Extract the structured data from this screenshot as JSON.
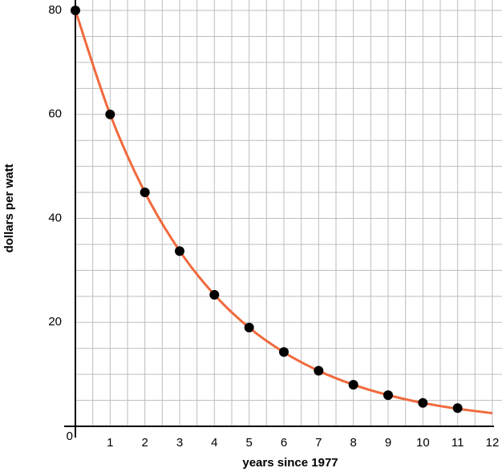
{
  "chart_data": {
    "type": "scatter",
    "x_label": "years since 1977",
    "y_label": "dollars per watt",
    "xlim": [
      0,
      12
    ],
    "ylim": [
      0,
      80
    ],
    "xticks": [
      1,
      2,
      3,
      4,
      5,
      6,
      7,
      8,
      9,
      10,
      11,
      12
    ],
    "yticks": [
      0,
      20,
      40,
      60,
      80
    ],
    "minor_xticks": [
      0.5,
      1,
      1.5,
      2,
      2.5,
      3,
      3.5,
      4,
      4.5,
      5,
      5.5,
      6,
      6.5,
      7,
      7.5,
      8,
      8.5,
      9,
      9.5,
      10,
      10.5,
      11,
      11.5,
      12
    ],
    "minor_yticks": [
      5,
      10,
      15,
      20,
      25,
      30,
      35,
      40,
      45,
      50,
      55,
      60,
      65,
      70,
      75,
      80
    ],
    "grid": true,
    "series": [
      {
        "type": "line",
        "color": "#f0693c",
        "x": [
          0,
          1,
          2,
          3,
          4,
          5,
          6,
          7,
          8,
          9,
          10,
          11,
          12
        ],
        "values": [
          80,
          60,
          45,
          33.75,
          25.31,
          18.98,
          14.24,
          10.68,
          8.01,
          6.01,
          4.5,
          3.38,
          2.53
        ]
      },
      {
        "type": "scatter",
        "color": "#000000",
        "x": [
          0,
          1,
          2,
          3,
          4,
          5,
          6,
          7,
          8,
          9,
          10,
          11
        ],
        "values": [
          80,
          60,
          45,
          33.7,
          25.3,
          19,
          14.3,
          10.7,
          8,
          6,
          4.5,
          3.5
        ]
      }
    ]
  }
}
